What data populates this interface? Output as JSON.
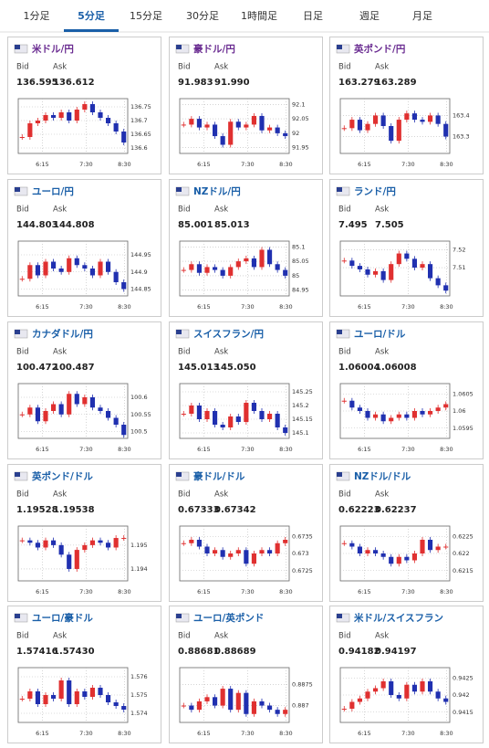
{
  "tabs": [
    "1分足",
    "5分足",
    "15分足",
    "30分足",
    "1時間足",
    "日足",
    "週足",
    "月足"
  ],
  "bid_label": "Bid",
  "ask_label": "Ask",
  "xticks": [
    "6:15",
    "7:30",
    "8:30"
  ],
  "panels": [
    {
      "title": "米ドル/円",
      "bid": "136.595",
      "ask": "136.612",
      "ylim": [
        136.58,
        136.78
      ],
      "yticks": [
        136.75,
        136.7,
        136.65,
        136.6
      ],
      "closes": [
        136.64,
        136.69,
        136.7,
        136.72,
        136.71,
        136.73,
        136.7,
        136.74,
        136.76,
        136.73,
        136.71,
        136.69,
        136.66,
        136.62
      ]
    },
    {
      "title": "豪ドル/円",
      "bid": "91.983",
      "ask": "91.990",
      "ylim": [
        91.93,
        92.12
      ],
      "yticks": [
        92.1,
        92.05,
        92,
        91.95
      ],
      "closes": [
        92.03,
        92.05,
        92.02,
        92.03,
        91.99,
        91.96,
        92.04,
        92.02,
        92.03,
        92.06,
        92.01,
        92.02,
        92.0,
        91.99
      ]
    },
    {
      "title": "英ポンド/円",
      "bid": "163.279",
      "ask": "163.289",
      "ylim": [
        163.22,
        163.48
      ],
      "yticks": [
        163.4,
        163.3
      ],
      "closes": [
        163.34,
        163.38,
        163.33,
        163.36,
        163.4,
        163.35,
        163.28,
        163.38,
        163.41,
        163.38,
        163.37,
        163.4,
        163.36,
        163.3
      ]
    },
    {
      "title": "ユーロ/円",
      "bid": "144.803",
      "ask": "144.808",
      "ylim": [
        144.83,
        144.99
      ],
      "yticks": [
        144.95,
        144.9,
        144.85
      ],
      "closes": [
        144.88,
        144.92,
        144.89,
        144.93,
        144.91,
        144.9,
        144.94,
        144.92,
        144.91,
        144.89,
        144.93,
        144.9,
        144.87,
        144.85
      ]
    },
    {
      "title": "NZドル/円",
      "bid": "85.001",
      "ask": "85.013",
      "ylim": [
        84.93,
        85.12
      ],
      "yticks": [
        85.1,
        85.05,
        85,
        84.95
      ],
      "closes": [
        85.02,
        85.04,
        85.01,
        85.03,
        85.02,
        85.0,
        85.03,
        85.05,
        85.06,
        85.03,
        85.09,
        85.04,
        85.02,
        85.0
      ]
    },
    {
      "title": "ランド/円",
      "bid": "7.495",
      "ask": "7.505",
      "ylim": [
        7.494,
        7.525
      ],
      "yticks": [
        7.52,
        7.51
      ],
      "closes": [
        7.514,
        7.511,
        7.509,
        7.506,
        7.508,
        7.503,
        7.512,
        7.518,
        7.515,
        7.51,
        7.512,
        7.504,
        7.5,
        7.497
      ]
    },
    {
      "title": "カナダドル/円",
      "bid": "100.472",
      "ask": "100.487",
      "ylim": [
        100.48,
        100.64
      ],
      "yticks": [
        100.6,
        100.55,
        100.5
      ],
      "closes": [
        100.55,
        100.57,
        100.53,
        100.56,
        100.58,
        100.55,
        100.61,
        100.58,
        100.6,
        100.57,
        100.56,
        100.54,
        100.52,
        100.49
      ]
    },
    {
      "title": "スイスフラン/円",
      "bid": "145.013",
      "ask": "145.050",
      "ylim": [
        145.08,
        145.28
      ],
      "yticks": [
        145.25,
        145.2,
        145.15,
        145.1
      ],
      "closes": [
        145.17,
        145.2,
        145.15,
        145.18,
        145.13,
        145.12,
        145.16,
        145.14,
        145.21,
        145.18,
        145.15,
        145.17,
        145.12,
        145.1
      ]
    },
    {
      "title": "ユーロ/ドル",
      "bid": "1.06004",
      "ask": "1.06008",
      "ylim": [
        1.0592,
        1.0608
      ],
      "yticks": [
        1.0605,
        1.06,
        1.0595
      ],
      "closes": [
        1.0603,
        1.0601,
        1.06,
        1.0598,
        1.0599,
        1.0597,
        1.0598,
        1.0599,
        1.0598,
        1.06,
        1.0599,
        1.06,
        1.0601,
        1.0602
      ]
    },
    {
      "title": "英ポンド/ドル",
      "bid": "1.19528",
      "ask": "1.19538",
      "ylim": [
        1.1935,
        1.1958
      ],
      "yticks": [
        1.195,
        1.194
      ],
      "closes": [
        1.1952,
        1.1951,
        1.1949,
        1.1952,
        1.195,
        1.1946,
        1.194,
        1.1948,
        1.195,
        1.1952,
        1.1951,
        1.1949,
        1.1953,
        1.1953
      ]
    },
    {
      "title": "豪ドル/ドル",
      "bid": "0.67333",
      "ask": "0.67342",
      "ylim": [
        0.6722,
        0.6738
      ],
      "yticks": [
        0.6735,
        0.673,
        0.6725
      ],
      "closes": [
        0.6733,
        0.6734,
        0.6732,
        0.673,
        0.6731,
        0.6729,
        0.673,
        0.6731,
        0.6727,
        0.673,
        0.6731,
        0.673,
        0.6733,
        0.6734
      ]
    },
    {
      "title": "NZドル/ドル",
      "bid": "0.62223",
      "ask": "0.62237",
      "ylim": [
        0.6212,
        0.6228
      ],
      "yticks": [
        0.6225,
        0.622,
        0.6215
      ],
      "closes": [
        0.6223,
        0.6222,
        0.622,
        0.6221,
        0.622,
        0.6219,
        0.6217,
        0.6219,
        0.6218,
        0.622,
        0.6224,
        0.6221,
        0.6222,
        0.6222
      ]
    },
    {
      "title": "ユーロ/豪ドル",
      "bid": "1.57416",
      "ask": "1.57430",
      "ylim": [
        1.5735,
        1.5765
      ],
      "yticks": [
        1.576,
        1.575,
        1.574
      ],
      "closes": [
        1.5748,
        1.5752,
        1.5745,
        1.575,
        1.5748,
        1.5758,
        1.5745,
        1.5752,
        1.5749,
        1.5754,
        1.575,
        1.5746,
        1.5744,
        1.5742
      ]
    },
    {
      "title": "ユーロ/英ポンド",
      "bid": "0.88681",
      "ask": "0.88689",
      "ylim": [
        0.8866,
        0.8879
      ],
      "yticks": [
        0.8875,
        0.887
      ],
      "closes": [
        0.887,
        0.8869,
        0.8871,
        0.8872,
        0.887,
        0.8874,
        0.8869,
        0.8873,
        0.8868,
        0.8871,
        0.887,
        0.8869,
        0.8868,
        0.8869
      ]
    },
    {
      "title": "米ドル/スイスフラン",
      "bid": "0.94182",
      "ask": "0.94197",
      "ylim": [
        0.9412,
        0.9428
      ],
      "yticks": [
        0.9425,
        0.942,
        0.9415
      ],
      "closes": [
        0.9416,
        0.9418,
        0.9419,
        0.9421,
        0.9422,
        0.9424,
        0.942,
        0.9419,
        0.9423,
        0.9421,
        0.9424,
        0.9421,
        0.9419,
        0.9418
      ]
    }
  ]
}
